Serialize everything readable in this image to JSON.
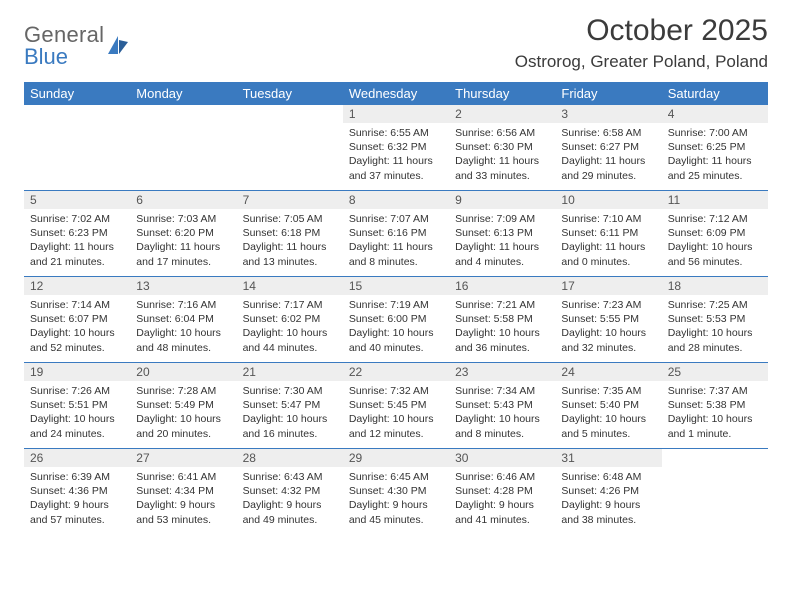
{
  "brand": {
    "name1": "General",
    "name2": "Blue"
  },
  "title": "October 2025",
  "location": "Ostrorog, Greater Poland, Poland",
  "colors": {
    "header_bg": "#3a7ac0",
    "header_text": "#ffffff",
    "daynum_bg": "#eeeeee",
    "rule": "#3a7ac0",
    "text": "#333333",
    "background": "#ffffff"
  },
  "typography": {
    "month_title_fontsize": 30,
    "location_fontsize": 17,
    "dayhead_fontsize": 13,
    "daynum_fontsize": 12,
    "body_fontsize": 10.5
  },
  "day_headers": [
    "Sunday",
    "Monday",
    "Tuesday",
    "Wednesday",
    "Thursday",
    "Friday",
    "Saturday"
  ],
  "weeks": [
    [
      {
        "n": "",
        "lines": []
      },
      {
        "n": "",
        "lines": []
      },
      {
        "n": "",
        "lines": []
      },
      {
        "n": "1",
        "lines": [
          "Sunrise: 6:55 AM",
          "Sunset: 6:32 PM",
          "Daylight: 11 hours and 37 minutes."
        ]
      },
      {
        "n": "2",
        "lines": [
          "Sunrise: 6:56 AM",
          "Sunset: 6:30 PM",
          "Daylight: 11 hours and 33 minutes."
        ]
      },
      {
        "n": "3",
        "lines": [
          "Sunrise: 6:58 AM",
          "Sunset: 6:27 PM",
          "Daylight: 11 hours and 29 minutes."
        ]
      },
      {
        "n": "4",
        "lines": [
          "Sunrise: 7:00 AM",
          "Sunset: 6:25 PM",
          "Daylight: 11 hours and 25 minutes."
        ]
      }
    ],
    [
      {
        "n": "5",
        "lines": [
          "Sunrise: 7:02 AM",
          "Sunset: 6:23 PM",
          "Daylight: 11 hours and 21 minutes."
        ]
      },
      {
        "n": "6",
        "lines": [
          "Sunrise: 7:03 AM",
          "Sunset: 6:20 PM",
          "Daylight: 11 hours and 17 minutes."
        ]
      },
      {
        "n": "7",
        "lines": [
          "Sunrise: 7:05 AM",
          "Sunset: 6:18 PM",
          "Daylight: 11 hours and 13 minutes."
        ]
      },
      {
        "n": "8",
        "lines": [
          "Sunrise: 7:07 AM",
          "Sunset: 6:16 PM",
          "Daylight: 11 hours and 8 minutes."
        ]
      },
      {
        "n": "9",
        "lines": [
          "Sunrise: 7:09 AM",
          "Sunset: 6:13 PM",
          "Daylight: 11 hours and 4 minutes."
        ]
      },
      {
        "n": "10",
        "lines": [
          "Sunrise: 7:10 AM",
          "Sunset: 6:11 PM",
          "Daylight: 11 hours and 0 minutes."
        ]
      },
      {
        "n": "11",
        "lines": [
          "Sunrise: 7:12 AM",
          "Sunset: 6:09 PM",
          "Daylight: 10 hours and 56 minutes."
        ]
      }
    ],
    [
      {
        "n": "12",
        "lines": [
          "Sunrise: 7:14 AM",
          "Sunset: 6:07 PM",
          "Daylight: 10 hours and 52 minutes."
        ]
      },
      {
        "n": "13",
        "lines": [
          "Sunrise: 7:16 AM",
          "Sunset: 6:04 PM",
          "Daylight: 10 hours and 48 minutes."
        ]
      },
      {
        "n": "14",
        "lines": [
          "Sunrise: 7:17 AM",
          "Sunset: 6:02 PM",
          "Daylight: 10 hours and 44 minutes."
        ]
      },
      {
        "n": "15",
        "lines": [
          "Sunrise: 7:19 AM",
          "Sunset: 6:00 PM",
          "Daylight: 10 hours and 40 minutes."
        ]
      },
      {
        "n": "16",
        "lines": [
          "Sunrise: 7:21 AM",
          "Sunset: 5:58 PM",
          "Daylight: 10 hours and 36 minutes."
        ]
      },
      {
        "n": "17",
        "lines": [
          "Sunrise: 7:23 AM",
          "Sunset: 5:55 PM",
          "Daylight: 10 hours and 32 minutes."
        ]
      },
      {
        "n": "18",
        "lines": [
          "Sunrise: 7:25 AM",
          "Sunset: 5:53 PM",
          "Daylight: 10 hours and 28 minutes."
        ]
      }
    ],
    [
      {
        "n": "19",
        "lines": [
          "Sunrise: 7:26 AM",
          "Sunset: 5:51 PM",
          "Daylight: 10 hours and 24 minutes."
        ]
      },
      {
        "n": "20",
        "lines": [
          "Sunrise: 7:28 AM",
          "Sunset: 5:49 PM",
          "Daylight: 10 hours and 20 minutes."
        ]
      },
      {
        "n": "21",
        "lines": [
          "Sunrise: 7:30 AM",
          "Sunset: 5:47 PM",
          "Daylight: 10 hours and 16 minutes."
        ]
      },
      {
        "n": "22",
        "lines": [
          "Sunrise: 7:32 AM",
          "Sunset: 5:45 PM",
          "Daylight: 10 hours and 12 minutes."
        ]
      },
      {
        "n": "23",
        "lines": [
          "Sunrise: 7:34 AM",
          "Sunset: 5:43 PM",
          "Daylight: 10 hours and 8 minutes."
        ]
      },
      {
        "n": "24",
        "lines": [
          "Sunrise: 7:35 AM",
          "Sunset: 5:40 PM",
          "Daylight: 10 hours and 5 minutes."
        ]
      },
      {
        "n": "25",
        "lines": [
          "Sunrise: 7:37 AM",
          "Sunset: 5:38 PM",
          "Daylight: 10 hours and 1 minute."
        ]
      }
    ],
    [
      {
        "n": "26",
        "lines": [
          "Sunrise: 6:39 AM",
          "Sunset: 4:36 PM",
          "Daylight: 9 hours and 57 minutes."
        ]
      },
      {
        "n": "27",
        "lines": [
          "Sunrise: 6:41 AM",
          "Sunset: 4:34 PM",
          "Daylight: 9 hours and 53 minutes."
        ]
      },
      {
        "n": "28",
        "lines": [
          "Sunrise: 6:43 AM",
          "Sunset: 4:32 PM",
          "Daylight: 9 hours and 49 minutes."
        ]
      },
      {
        "n": "29",
        "lines": [
          "Sunrise: 6:45 AM",
          "Sunset: 4:30 PM",
          "Daylight: 9 hours and 45 minutes."
        ]
      },
      {
        "n": "30",
        "lines": [
          "Sunrise: 6:46 AM",
          "Sunset: 4:28 PM",
          "Daylight: 9 hours and 41 minutes."
        ]
      },
      {
        "n": "31",
        "lines": [
          "Sunrise: 6:48 AM",
          "Sunset: 4:26 PM",
          "Daylight: 9 hours and 38 minutes."
        ]
      },
      {
        "n": "",
        "lines": []
      }
    ]
  ]
}
